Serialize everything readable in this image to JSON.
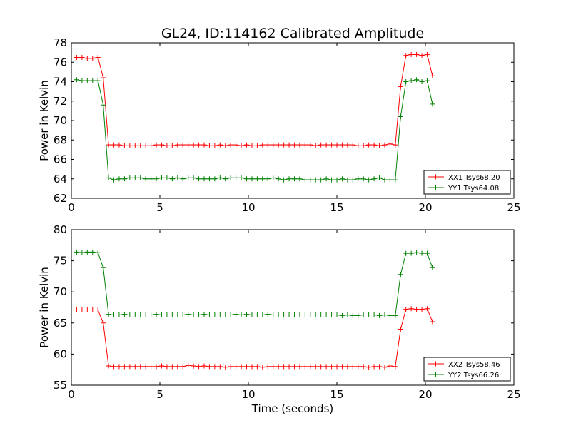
{
  "title": "GL24, ID:114162 Calibrated Amplitude",
  "xlabel": "Time (seconds)",
  "chart_data": [
    {
      "type": "line",
      "ylabel": "Power in Kelvin",
      "xlim": [
        0,
        25
      ],
      "ylim": [
        62,
        78
      ],
      "xticks": [
        "0",
        "5",
        "10",
        "15",
        "20",
        "25"
      ],
      "xtick_values": [
        0,
        5,
        10,
        15,
        20,
        25
      ],
      "yticks": [
        "62",
        "64",
        "66",
        "68",
        "70",
        "72",
        "74",
        "76",
        "78"
      ],
      "ytick_values": [
        62,
        64,
        66,
        68,
        70,
        72,
        74,
        76,
        78
      ],
      "legend_position": "lower-right",
      "x": [
        0.3,
        0.6,
        0.9,
        1.2,
        1.5,
        1.8,
        2.1,
        2.4,
        2.7,
        3.0,
        3.3,
        3.6,
        3.9,
        4.2,
        4.5,
        4.8,
        5.1,
        5.4,
        5.7,
        6.0,
        6.3,
        6.6,
        6.9,
        7.2,
        7.5,
        7.8,
        8.1,
        8.4,
        8.7,
        9.0,
        9.3,
        9.6,
        9.9,
        10.2,
        10.5,
        10.8,
        11.1,
        11.4,
        11.7,
        12.0,
        12.3,
        12.6,
        12.9,
        13.2,
        13.5,
        13.8,
        14.1,
        14.4,
        14.7,
        15.0,
        15.3,
        15.6,
        15.9,
        16.2,
        16.5,
        16.8,
        17.1,
        17.4,
        17.7,
        18.0,
        18.3,
        18.6,
        18.9,
        19.2,
        19.5,
        19.8,
        20.1,
        20.4
      ],
      "series": [
        {
          "name": "XX1 Tsys68.20",
          "color": "#ff0000",
          "values": [
            76.5,
            76.5,
            76.4,
            76.4,
            76.5,
            74.4,
            67.5,
            67.5,
            67.5,
            67.4,
            67.4,
            67.4,
            67.4,
            67.4,
            67.4,
            67.5,
            67.5,
            67.4,
            67.4,
            67.5,
            67.5,
            67.5,
            67.5,
            67.5,
            67.5,
            67.4,
            67.4,
            67.5,
            67.4,
            67.5,
            67.5,
            67.4,
            67.5,
            67.4,
            67.4,
            67.5,
            67.5,
            67.5,
            67.5,
            67.5,
            67.5,
            67.5,
            67.5,
            67.5,
            67.5,
            67.4,
            67.5,
            67.5,
            67.5,
            67.5,
            67.5,
            67.5,
            67.5,
            67.4,
            67.4,
            67.5,
            67.5,
            67.4,
            67.5,
            67.6,
            67.5,
            73.5,
            76.7,
            76.8,
            76.8,
            76.7,
            76.8,
            74.6
          ]
        },
        {
          "name": "YY1 Tsys64.08",
          "color": "#008000",
          "values": [
            74.2,
            74.1,
            74.1,
            74.1,
            74.1,
            71.6,
            64.1,
            63.9,
            64.0,
            64.0,
            64.1,
            64.1,
            64.1,
            64.0,
            64.0,
            64.0,
            64.1,
            64.1,
            64.0,
            64.1,
            64.0,
            64.1,
            64.1,
            64.0,
            64.0,
            64.0,
            64.0,
            64.1,
            64.0,
            64.1,
            64.1,
            64.1,
            64.0,
            64.0,
            64.0,
            64.0,
            64.0,
            64.1,
            64.0,
            63.9,
            64.0,
            64.0,
            64.0,
            63.9,
            63.9,
            63.9,
            63.9,
            64.0,
            63.9,
            63.9,
            64.0,
            63.9,
            63.9,
            64.0,
            64.0,
            63.9,
            64.0,
            64.1,
            63.9,
            63.9,
            63.9,
            70.4,
            74.0,
            74.1,
            74.2,
            74.0,
            74.1,
            71.7
          ]
        }
      ]
    },
    {
      "type": "line",
      "ylabel": "Power in Kelvin",
      "xlim": [
        0,
        25
      ],
      "ylim": [
        55,
        80
      ],
      "xticks": [
        "0",
        "5",
        "10",
        "15",
        "20",
        "25"
      ],
      "xtick_values": [
        0,
        5,
        10,
        15,
        20,
        25
      ],
      "yticks": [
        "55",
        "60",
        "65",
        "70",
        "75",
        "80"
      ],
      "ytick_values": [
        55,
        60,
        65,
        70,
        75,
        80
      ],
      "legend_position": "lower-right",
      "x": [
        0.3,
        0.6,
        0.9,
        1.2,
        1.5,
        1.8,
        2.1,
        2.4,
        2.7,
        3.0,
        3.3,
        3.6,
        3.9,
        4.2,
        4.5,
        4.8,
        5.1,
        5.4,
        5.7,
        6.0,
        6.3,
        6.6,
        6.9,
        7.2,
        7.5,
        7.8,
        8.1,
        8.4,
        8.7,
        9.0,
        9.3,
        9.6,
        9.9,
        10.2,
        10.5,
        10.8,
        11.1,
        11.4,
        11.7,
        12.0,
        12.3,
        12.6,
        12.9,
        13.2,
        13.5,
        13.8,
        14.1,
        14.4,
        14.7,
        15.0,
        15.3,
        15.6,
        15.9,
        16.2,
        16.5,
        16.8,
        17.1,
        17.4,
        17.7,
        18.0,
        18.3,
        18.6,
        18.9,
        19.2,
        19.5,
        19.8,
        20.1,
        20.4
      ],
      "series": [
        {
          "name": "XX2 Tsys58.46",
          "color": "#ff0000",
          "values": [
            67.1,
            67.1,
            67.1,
            67.1,
            67.1,
            65.0,
            58.1,
            58.0,
            58.0,
            58.0,
            58.0,
            58.0,
            58.0,
            58.0,
            58.0,
            58.0,
            58.1,
            58.0,
            58.0,
            58.0,
            58.0,
            58.2,
            58.1,
            58.0,
            58.1,
            58.0,
            58.0,
            58.0,
            57.9,
            58.0,
            58.0,
            58.0,
            58.0,
            58.0,
            58.0,
            57.9,
            58.0,
            58.0,
            58.0,
            58.0,
            58.0,
            58.0,
            58.0,
            58.0,
            58.0,
            58.0,
            58.0,
            58.0,
            58.0,
            58.0,
            58.0,
            58.0,
            58.0,
            58.0,
            58.0,
            57.9,
            58.0,
            58.0,
            57.9,
            58.1,
            58.0,
            64.0,
            67.2,
            67.3,
            67.2,
            67.2,
            67.3,
            65.2
          ]
        },
        {
          "name": "YY2 Tsys66.26",
          "color": "#008000",
          "values": [
            76.4,
            76.3,
            76.4,
            76.4,
            76.3,
            73.9,
            66.4,
            66.3,
            66.3,
            66.4,
            66.3,
            66.3,
            66.3,
            66.3,
            66.3,
            66.4,
            66.3,
            66.3,
            66.3,
            66.3,
            66.3,
            66.4,
            66.3,
            66.3,
            66.4,
            66.3,
            66.3,
            66.3,
            66.3,
            66.3,
            66.4,
            66.3,
            66.4,
            66.3,
            66.3,
            66.3,
            66.4,
            66.3,
            66.3,
            66.3,
            66.3,
            66.3,
            66.3,
            66.3,
            66.3,
            66.3,
            66.3,
            66.3,
            66.3,
            66.3,
            66.2,
            66.3,
            66.2,
            66.2,
            66.3,
            66.3,
            66.3,
            66.2,
            66.3,
            66.2,
            66.2,
            72.8,
            76.2,
            76.2,
            76.3,
            76.2,
            76.2,
            73.9
          ]
        }
      ]
    }
  ]
}
